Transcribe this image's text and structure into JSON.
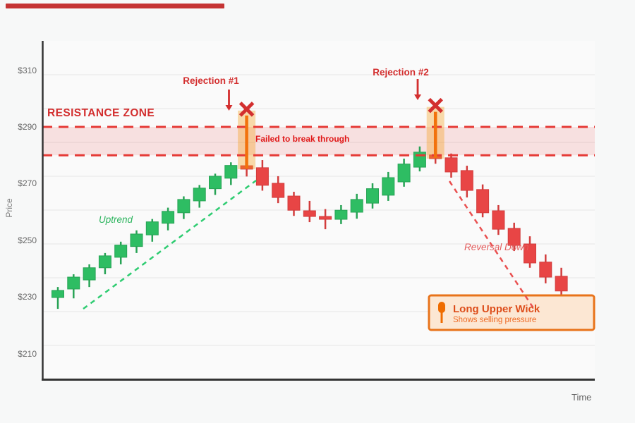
{
  "page": {
    "loading_bar_color": "#c53434",
    "background": "#f7f8f8"
  },
  "axis": {
    "y_title": "Price",
    "x_title": "Time",
    "y_ticks": [
      {
        "label": "$310",
        "value": 310
      },
      {
        "label": "$290",
        "value": 290
      },
      {
        "label": "$270",
        "value": 270
      },
      {
        "label": "$250",
        "value": 250
      },
      {
        "label": "$230",
        "value": 230
      },
      {
        "label": "$210",
        "value": 210
      }
    ]
  },
  "resistance": {
    "label": "RESISTANCE ZONE",
    "note": "Failed to break through",
    "top_price": 290,
    "bottom_price": 280,
    "line_color": "#e53935",
    "fill_color": "rgba(232,80,80,0.15)"
  },
  "annotations": {
    "rejection1": {
      "label": "Rejection #1",
      "candle_index": 12
    },
    "rejection2": {
      "label": "Rejection #2",
      "candle_index": 24
    },
    "uptrend": {
      "label": "Uptrend"
    },
    "reversal": {
      "label": "Reversal Down"
    }
  },
  "callout": {
    "icon": "long-upper-wick-candle-icon",
    "title": "Long Upper Wick",
    "subtitle": "Shows selling pressure",
    "border_color": "#e8731a",
    "fill_color": "#fce7d3",
    "icon_color": "#ef6c00"
  },
  "chart_data": {
    "type": "candlestick",
    "ylabel": "Price",
    "xlabel": "Time",
    "ylim": [
      200,
      320
    ],
    "grid": true,
    "resistance_zone": [
      280,
      290
    ],
    "colors": {
      "up_fill": "#2ebd63",
      "up_stroke": "#27a355",
      "down_fill": "#e84545",
      "down_stroke": "#d23c3c",
      "highlight_fill": "rgba(243,156,18,0.35)",
      "highlight_wick": "#f2720c",
      "marker_x": "#d32f2f",
      "uptrend_line": "#2ecc71",
      "downtrend_line": "#e95050"
    },
    "candles": [
      {
        "o": 229.8,
        "c": 232.3,
        "h": 233.5,
        "l": 225.8
      },
      {
        "o": 232.8,
        "c": 237.0,
        "h": 238.0,
        "l": 229.5
      },
      {
        "o": 236.0,
        "c": 240.3,
        "h": 241.5,
        "l": 233.5
      },
      {
        "o": 240.3,
        "c": 244.5,
        "h": 245.5,
        "l": 238.0
      },
      {
        "o": 244.0,
        "c": 248.3,
        "h": 249.5,
        "l": 241.5
      },
      {
        "o": 247.8,
        "c": 252.2,
        "h": 253.5,
        "l": 245.5
      },
      {
        "o": 251.9,
        "c": 256.5,
        "h": 257.5,
        "l": 249.5
      },
      {
        "o": 256.0,
        "c": 260.2,
        "h": 261.5,
        "l": 253.5
      },
      {
        "o": 259.7,
        "c": 264.4,
        "h": 265.5,
        "l": 257.5
      },
      {
        "o": 263.9,
        "c": 268.4,
        "h": 269.5,
        "l": 261.5
      },
      {
        "o": 268.2,
        "c": 272.6,
        "h": 273.5,
        "l": 266.0
      },
      {
        "o": 271.9,
        "c": 276.4,
        "h": 277.5,
        "l": 269.5
      },
      {
        "o": 276.3,
        "c": 275.1,
        "h": 296.5,
        "l": 272.5,
        "hl": true
      },
      {
        "o": 275.6,
        "c": 269.4,
        "h": 278.3,
        "l": 267.5
      },
      {
        "o": 270.1,
        "c": 265.1,
        "h": 272.6,
        "l": 263.1
      },
      {
        "o": 265.6,
        "c": 260.6,
        "h": 267.1,
        "l": 258.6
      },
      {
        "o": 260.4,
        "c": 258.4,
        "h": 263.9,
        "l": 256.4
      },
      {
        "o": 258.4,
        "c": 257.4,
        "h": 261.0,
        "l": 253.9
      },
      {
        "o": 257.4,
        "c": 260.6,
        "h": 262.4,
        "l": 255.7
      },
      {
        "o": 259.9,
        "c": 264.4,
        "h": 266.4,
        "l": 257.6
      },
      {
        "o": 263.1,
        "c": 268.2,
        "h": 270.1,
        "l": 261.2
      },
      {
        "o": 265.9,
        "c": 272.1,
        "h": 274.1,
        "l": 263.9
      },
      {
        "o": 270.6,
        "c": 276.9,
        "h": 278.8,
        "l": 268.9
      },
      {
        "o": 275.8,
        "c": 281.1,
        "h": 283.1,
        "l": 274.3
      },
      {
        "o": 280.1,
        "c": 278.8,
        "h": 297.8,
        "l": 277.0,
        "hl": true
      },
      {
        "o": 279.1,
        "c": 274.1,
        "h": 280.6,
        "l": 272.1
      },
      {
        "o": 274.6,
        "c": 267.6,
        "h": 276.3,
        "l": 265.1
      },
      {
        "o": 267.9,
        "c": 259.7,
        "h": 269.7,
        "l": 258.1
      },
      {
        "o": 260.4,
        "c": 253.9,
        "h": 262.4,
        "l": 251.9
      },
      {
        "o": 254.2,
        "c": 248.2,
        "h": 256.2,
        "l": 246.2
      },
      {
        "o": 248.7,
        "c": 242.0,
        "h": 251.4,
        "l": 240.3
      },
      {
        "o": 242.3,
        "c": 237.0,
        "h": 245.0,
        "l": 234.8
      },
      {
        "o": 237.3,
        "c": 232.1,
        "h": 240.3,
        "l": 230.3
      }
    ]
  }
}
